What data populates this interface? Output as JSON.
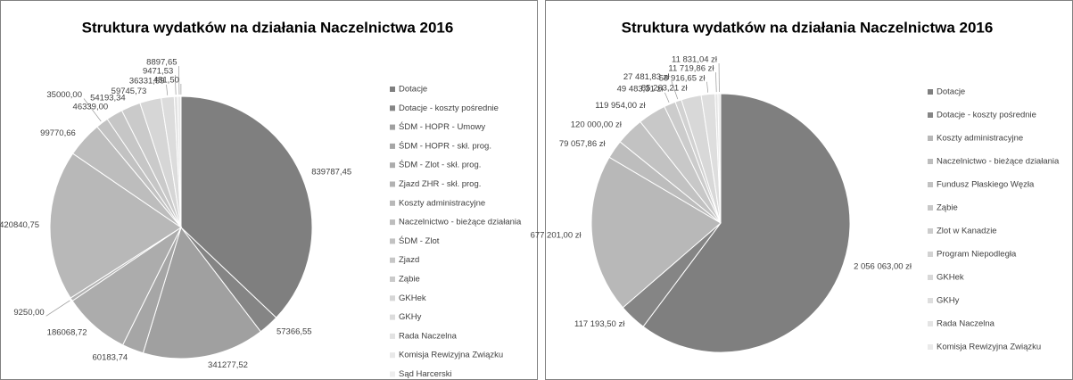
{
  "chart_data": [
    {
      "type": "pie",
      "title": "Struktura wydatków na działania Naczelnictwa 2016",
      "categories": [
        "Dotacje",
        "Dotacje - koszty pośrednie",
        "ŚDM - HOPR - Umowy",
        "ŚDM - HOPR - skł. prog.",
        "ŚDM - Zlot - skł. prog.",
        "Zjazd ZHR - skł. prog.",
        "Koszty administracyjne",
        "Naczelnictwo - bieżące działania",
        "ŚDM - Zlot",
        "Zjazd",
        "Ząbie",
        "GKHek",
        "GKHy",
        "Rada Naczelna",
        "Komisja Rewizyjna Związku",
        "Sąd Harcerski"
      ],
      "values": [
        839787.45,
        57366.55,
        341277.52,
        60183.74,
        186068.72,
        9250.0,
        420840.75,
        99770.66,
        35000.0,
        46339.0,
        54193.34,
        59745.73,
        36331.59,
        9471.53,
        8897.65,
        481.5
      ],
      "value_labels": [
        "839787,45",
        "57366,55",
        "341277,52",
        "60183,74",
        "186068,72",
        "9250,00",
        "420840,75",
        "99770,66",
        "35000,00",
        "46339,00",
        "54193,34",
        "59745,73",
        "36331,59",
        "9471,53",
        "8897,65",
        "481,50"
      ],
      "colors": [
        "#7f7f7f",
        "#858585",
        "#a0a0a0",
        "#a6a6a6",
        "#acacac",
        "#b2b2b2",
        "#b8b8b8",
        "#bdbdbd",
        "#c2c2c2",
        "#c6c6c6",
        "#cacaca",
        "#d6d6d6",
        "#dcdcdc",
        "#e2e2e2",
        "#e8e8e8",
        "#eeeeee"
      ]
    },
    {
      "type": "pie",
      "title": "Struktura wydatków na działania Naczelnictwa 2016",
      "categories": [
        "Dotacje",
        "Dotacje - koszty pośrednie",
        "Koszty administracyjne",
        "Naczelnictwo - bieżące działania",
        "Fundusz Płaskiego Węzła",
        "Ząbie",
        "Zlot w Kanadzie",
        "Program Niepodległa",
        "GKHek",
        "GKHy",
        "Rada Naczelna",
        "Komisja Rewizyjna Związku"
      ],
      "values": [
        2056063.0,
        117193.5,
        677201.0,
        79057.86,
        120000.0,
        119954.0,
        49483.31,
        27481.83,
        85263.21,
        58916.65,
        11719.86,
        11831.04
      ],
      "value_labels": [
        "2 056 063,00 zł",
        "117 193,50 zł",
        "677 201,00 zł",
        "79 057,86 zł",
        "120 000,00 zł",
        "119 954,00 zł",
        "49 483,31 zł",
        "27 481,83 zł",
        "85 263,21 zł",
        "58 916,65 zł",
        "11 719,86 zł",
        "11 831,04 zł"
      ],
      "colors": [
        "#7f7f7f",
        "#858585",
        "#b8b8b8",
        "#bdbdbd",
        "#c2c2c2",
        "#c8c8c8",
        "#cccccc",
        "#d2d2d2",
        "#d8d8d8",
        "#dedede",
        "#e4e4e4",
        "#eaeaea"
      ]
    }
  ]
}
